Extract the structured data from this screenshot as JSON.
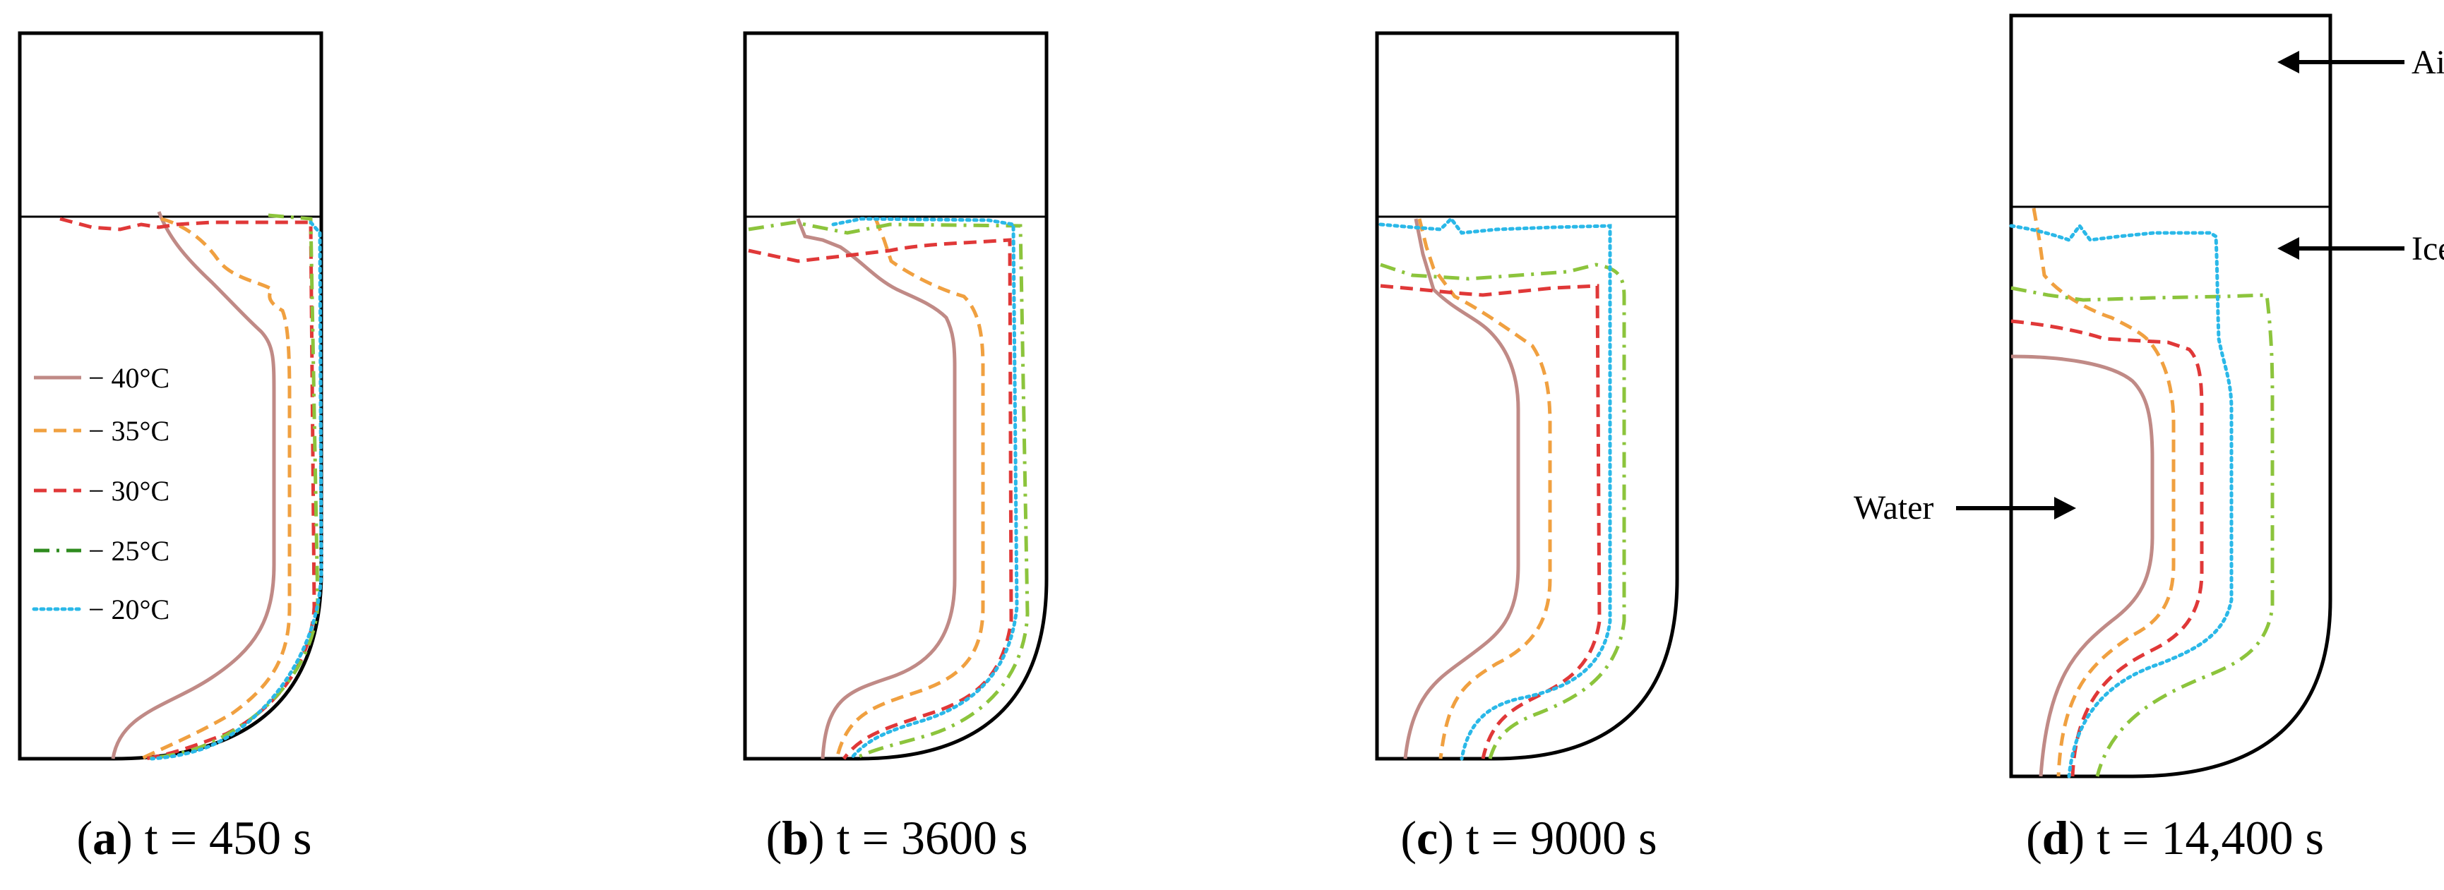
{
  "panels": [
    {
      "letter": "a",
      "time": "t = 450 s"
    },
    {
      "letter": "b",
      "time": "t = 3600 s"
    },
    {
      "letter": "c",
      "time": "t = 9000 s"
    },
    {
      "letter": "d",
      "time": "t = 14,400 s"
    }
  ],
  "legend": [
    {
      "label": "− 40°C",
      "color": "#c08a86",
      "style": "solid"
    },
    {
      "label": "− 35°C",
      "color": "#f0a040",
      "style": "dash"
    },
    {
      "label": "− 30°C",
      "color": "#e03838",
      "style": "dash"
    },
    {
      "label": "− 25°C",
      "color": "#2e8b1e",
      "style": "dashdot",
      "plot_color": "#8cc43c"
    },
    {
      "label": "− 20°C",
      "color": "#2ab8e8",
      "style": "dot"
    }
  ],
  "annotations": {
    "air": "Air",
    "ice": "Ice",
    "water": "Water"
  }
}
